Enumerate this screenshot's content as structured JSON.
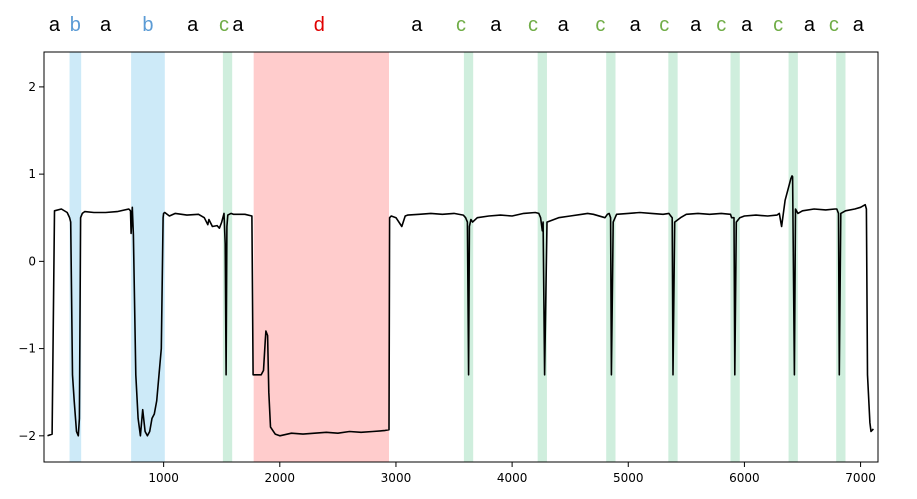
{
  "chart_data": {
    "type": "line",
    "xlim": [
      -30,
      7150
    ],
    "ylim": [
      -2.3,
      2.4
    ],
    "xticks": [
      1000,
      2000,
      3000,
      4000,
      5000,
      6000,
      7000
    ],
    "xtick_labels": [
      "1000",
      "2000",
      "3000",
      "4000",
      "5000",
      "6000",
      "7000"
    ],
    "yticks": [
      2,
      1,
      0,
      -1,
      -2
    ],
    "ytick_labels": [
      "2",
      "1",
      "0",
      "−1",
      "−2"
    ],
    "colors": {
      "b_band": "#cdeaf8",
      "c_band": "#cfeedd",
      "d_band": "#ffcccc",
      "a_text": "#000000",
      "b_text": "#5b9bd5",
      "c_text": "#70ad47",
      "d_text": "#e00000",
      "line": "#000000"
    },
    "bands": [
      {
        "type": "b",
        "start": 190,
        "end": 290
      },
      {
        "type": "b",
        "start": 720,
        "end": 1010
      },
      {
        "type": "c",
        "start": 1510,
        "end": 1590
      },
      {
        "type": "d",
        "start": 1775,
        "end": 2940
      },
      {
        "type": "c",
        "start": 3585,
        "end": 3665
      },
      {
        "type": "c",
        "start": 4220,
        "end": 4300
      },
      {
        "type": "c",
        "start": 4810,
        "end": 4890
      },
      {
        "type": "c",
        "start": 5345,
        "end": 5425
      },
      {
        "type": "c",
        "start": 5880,
        "end": 5960
      },
      {
        "type": "c",
        "start": 6380,
        "end": 6460
      },
      {
        "type": "c",
        "start": 6790,
        "end": 6870
      }
    ],
    "segment_labels": [
      {
        "text": "a",
        "x": 60
      },
      {
        "text": "b",
        "x": 240
      },
      {
        "text": "a",
        "x": 500
      },
      {
        "text": "b",
        "x": 865
      },
      {
        "text": "a",
        "x": 1250
      },
      {
        "text": "c",
        "x": 1520
      },
      {
        "text": "a",
        "x": 1640
      },
      {
        "text": "d",
        "x": 2340
      },
      {
        "text": "a",
        "x": 3180
      },
      {
        "text": "c",
        "x": 3560
      },
      {
        "text": "a",
        "x": 3860
      },
      {
        "text": "c",
        "x": 4180
      },
      {
        "text": "a",
        "x": 4440
      },
      {
        "text": "c",
        "x": 4760
      },
      {
        "text": "a",
        "x": 5060
      },
      {
        "text": "c",
        "x": 5310
      },
      {
        "text": "a",
        "x": 5580
      },
      {
        "text": "c",
        "x": 5800
      },
      {
        "text": "a",
        "x": 6020
      },
      {
        "text": "c",
        "x": 6290
      },
      {
        "text": "a",
        "x": 6560
      },
      {
        "text": "c",
        "x": 6770
      },
      {
        "text": "a",
        "x": 6980
      }
    ],
    "series": [
      {
        "x": [
          0,
          40,
          60,
          120,
          170,
          190,
          200,
          215,
          230,
          250,
          265,
          275,
          285,
          300,
          320,
          400,
          500,
          600,
          700,
          715,
          720,
          730,
          740,
          760,
          780,
          800,
          820,
          840,
          860,
          880,
          900,
          920,
          940,
          960,
          980,
          995,
          1000,
          1010,
          1050,
          1100,
          1200,
          1300,
          1350,
          1380,
          1390,
          1420,
          1460,
          1480,
          1500,
          1520,
          1530,
          1538,
          1545,
          1552,
          1565,
          1580,
          1600,
          1700,
          1760,
          1770,
          1780,
          1800,
          1840,
          1860,
          1875,
          1880,
          1895,
          1905,
          1920,
          1960,
          2000,
          2100,
          2200,
          2300,
          2400,
          2500,
          2600,
          2700,
          2800,
          2900,
          2940,
          2945,
          2960,
          3000,
          3050,
          3080,
          3100,
          3200,
          3300,
          3400,
          3500,
          3580,
          3600,
          3615,
          3625,
          3632,
          3645,
          3660,
          3700,
          3800,
          3900,
          4000,
          4100,
          4200,
          4230,
          4245,
          4260,
          4267,
          4280,
          4300,
          4400,
          4500,
          4600,
          4650,
          4700,
          4800,
          4820,
          4835,
          4848,
          4855,
          4870,
          4900,
          5000,
          5100,
          5200,
          5300,
          5350,
          5360,
          5378,
          5385,
          5400,
          5450,
          5500,
          5600,
          5700,
          5800,
          5880,
          5890,
          5910,
          5917,
          5930,
          5960,
          6000,
          6100,
          6200,
          6280,
          6300,
          6320,
          6350,
          6380,
          6400,
          6410,
          6415,
          6430,
          6440,
          6460,
          6500,
          6600,
          6700,
          6780,
          6795,
          6810,
          6817,
          6830,
          6870,
          6950,
          7000,
          7040,
          7050,
          7060,
          7080,
          7090,
          7110
        ],
        "y": [
          -2.0,
          -1.98,
          0.58,
          0.6,
          0.56,
          0.5,
          0.45,
          -1.3,
          -1.6,
          -1.95,
          -2.0,
          -1.8,
          0.5,
          0.55,
          0.57,
          0.56,
          0.56,
          0.57,
          0.6,
          0.58,
          0.32,
          0.62,
          0.3,
          -1.3,
          -1.8,
          -2.0,
          -1.7,
          -1.95,
          -2.0,
          -1.95,
          -1.8,
          -1.75,
          -1.6,
          -1.3,
          -1.0,
          0.5,
          0.55,
          0.56,
          0.52,
          0.55,
          0.53,
          0.54,
          0.5,
          0.42,
          0.48,
          0.4,
          0.41,
          0.38,
          0.45,
          0.55,
          0.2,
          -1.3,
          0.4,
          0.53,
          0.54,
          0.55,
          0.54,
          0.54,
          0.52,
          -1.3,
          -1.3,
          -1.3,
          -1.3,
          -1.25,
          -0.9,
          -0.8,
          -0.85,
          -1.5,
          -1.9,
          -1.98,
          -2.0,
          -1.97,
          -1.98,
          -1.97,
          -1.96,
          -1.97,
          -1.95,
          -1.96,
          -1.95,
          -1.94,
          -1.93,
          0.5,
          0.52,
          0.5,
          0.4,
          0.52,
          0.53,
          0.54,
          0.55,
          0.54,
          0.55,
          0.53,
          0.5,
          0.45,
          -1.3,
          0.4,
          0.48,
          0.45,
          0.5,
          0.52,
          0.53,
          0.52,
          0.55,
          0.56,
          0.55,
          0.5,
          0.35,
          0.45,
          -1.3,
          0.45,
          0.5,
          0.52,
          0.54,
          0.55,
          0.54,
          0.5,
          0.54,
          0.55,
          0.5,
          -1.3,
          0.45,
          0.54,
          0.55,
          0.56,
          0.55,
          0.54,
          0.55,
          0.53,
          0.5,
          -1.3,
          0.45,
          0.5,
          0.54,
          0.55,
          0.54,
          0.55,
          0.54,
          0.5,
          0.5,
          -1.3,
          0.45,
          0.5,
          0.52,
          0.53,
          0.52,
          0.53,
          0.55,
          0.4,
          0.7,
          0.85,
          0.95,
          0.98,
          0.97,
          -1.3,
          0.6,
          0.55,
          0.58,
          0.6,
          0.59,
          0.6,
          0.6,
          0.55,
          -1.3,
          0.55,
          0.58,
          0.6,
          0.62,
          0.65,
          0.6,
          -1.3,
          -1.85,
          -1.95,
          -1.92
        ]
      }
    ]
  }
}
